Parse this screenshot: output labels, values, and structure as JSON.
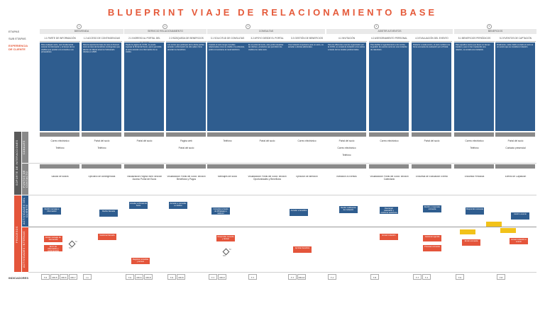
{
  "title": "BLUEPRINT VIAJE DE RELACIONAMIENTO BASE",
  "row_labels": {
    "etapa": "ETAPAS",
    "sub_etapas": "SUB ETAPAS",
    "experiencia": "EXPERIENCIA DE CLIENTE",
    "canales": "CANALES",
    "puntos_contacto": "PUNTOS DE CONTACTO",
    "soporte": "SOPORTE DE INTERACCIONES",
    "actividades_cliente": "ACTIVIDADES DEL CLIENTE",
    "actividades_internas": "ACTIVIDADES INTERNAS",
    "procesos": "PROCESOS",
    "indicadores": "INDICADORES"
  },
  "stages": [
    {
      "num": "1",
      "label": "BIENVENIDA"
    },
    {
      "num": "2",
      "label": "SERVICIO RELACIONAMIENTO"
    },
    {
      "num": "3",
      "label": "CONSULTAS"
    },
    {
      "num": "4",
      "label": "ASISTIR A EVENTOS"
    },
    {
      "num": "5",
      "label": "BENEFICIOS"
    }
  ],
  "phases": [
    "1.1 PARTE DE INFORMACIÓN",
    "1.2 ACCESO DE CONTINGENCIAS",
    "2.1 INGRESO AL PORTAL DEL CLIENTE",
    "2.2 BÚSQUEDA DE BENEFICIOS",
    "3.1 SOLICITUD DE CONSULTAS",
    "3.2 APOYO DESDE EL PORTAL",
    "3.3 GESTIÓN DE BENEFICIOS",
    "4.1 INVITACIÓN",
    "4.2 ASESORAMIENTO PERSONAL",
    "4.3 EVALUACIÓN DEL EVENTO",
    "5.1 BENEFICIOS PERIÓDICOS",
    "5.2 EVENTOS DE CAPTACIÓN"
  ],
  "experience_blocks": [
    "Para cualquier socio, será fundamental conocer la información y el tiempo de los créditos que puedan a la consulta a sus proveedores.",
    "Para la experiencia base de cara al ciberazo como el caso de beneficios contingentes que afecten al Cliente tenemos Subsanado clientes en 2020.",
    "Puede la página de CCSS, se puede ingresar al Portal del Socio, que le permitirá al socio acceder a la información de su crédito.",
    "Los socios que participan de la oferta podrán acceder a información de sólo saber cómo abordar los beneficios.",
    "Cuando el socio tenga consultas relacionadas como su crédito o la cobranza, podrá comunicarse al canal telefónico.",
    "En el portal del socio, éste podrá visualizar las ofertas y productos que permitirán los créditos de cada socio.",
    "Una invitación importante para un socio, es acceder a ofertas adicionales.",
    "Para los diferentes eventos organizados por la CCSS, se enviará la invitación a los socios a través de los canales preferenciales.",
    "Para facilitar el agendamiento a los socios, la gestión de eventos será con una invitación de calendario.",
    "Posterior a cada evento, el socio recibirá una breve encuesta de evaluación por el Portal.",
    "Para aquellos socios que llevan un tiempo inactivo y que no han mantenido una relación, se enviará una invitación.",
    "Finalmente, cada crédito enviado al socio es un evento que se considera invitación."
  ],
  "channels": [
    [
      "Correo electrónico",
      "Teléfono"
    ],
    [
      "Portal del socio",
      "Teléfono"
    ],
    [
      "Portal del socio"
    ],
    [
      "Página web",
      "Portal del socio"
    ],
    [
      "Teléfono"
    ],
    [
      "Portal del socio"
    ],
    [
      "Correo electrónico"
    ],
    [
      "Portal del socio",
      "Correo electrónico",
      "Teléfono"
    ],
    [
      "Correo electrónico"
    ],
    [
      "Portal del socio"
    ],
    [
      "Correo electrónico",
      "Teléfono"
    ],
    [
      "Portal del socio",
      "Contacto presencial"
    ]
  ],
  "touchpoints": [
    "Saludo de socios",
    "Ejecutivo de contingencias",
    "Visualización Página Web: sección Acceso Portal del Socio",
    "Visualización Portal del Socio: sección Beneficios y Pagos",
    "Mensajes del socio",
    "Visualización Portal del Socio: sección Oportunidades y Beneficios",
    "Ejecutivo de atención",
    "Invitación a Eventos",
    "Visualización Portal del Socio: sección Calendario",
    "Encuesta de Evaluación Evento",
    "Encuesta Periódica",
    "Evento de Captación"
  ],
  "client_nodes": [
    "Recibir mensaje e información",
    "Recibe llamada",
    "Acceder al Portal del Socio",
    "Acceder a consultar a créditos",
    "Consultar a través de Whatsapp o teléfono",
    "Acceder a beneficio",
    "Recibir notificación de invitación",
    "Descargar calendario y confirmar asistencia",
    "Recibir y responder encuesta",
    "Responder encuesta",
    "Asistir a evento"
  ],
  "internal_nodes": [
    "Enviar mensaje de bienvenida",
    "Envío de información y contingencias",
    "Gestionar llamada",
    "Registrar consultas y acceso",
    "Responder consulta y derivar",
    "Aprobar beneficio",
    "Enviar invitación",
    "Gestionar agenda",
    "Procesar encuesta",
    "Enviar encuesta",
    "Enviar invitación a evento"
  ],
  "labels": {
    "si": "SI",
    "no": "NO"
  },
  "indicators": [
    [
      "T-6",
      "RR-5",
      "RR-6",
      "RR-7"
    ],
    [
      "I-1"
    ],
    [
      "T-6",
      "RR-6",
      "RR-8"
    ],
    [
      "T-6",
      "RR-8"
    ],
    [
      "T-7",
      "RR-9"
    ],
    [
      "T-7"
    ],
    [
      "T-7",
      "RR-10"
    ],
    [
      "T-J"
    ],
    [
      "T-8"
    ],
    [
      "T-7",
      "T-J"
    ],
    [
      "T-6"
    ],
    [
      "T-8"
    ]
  ],
  "colors": {
    "title": "#e55a3a",
    "blue": "#2f5d8f",
    "red": "#e4553b",
    "yellow": "#f2c21a",
    "gray": "#8a8a8a"
  }
}
